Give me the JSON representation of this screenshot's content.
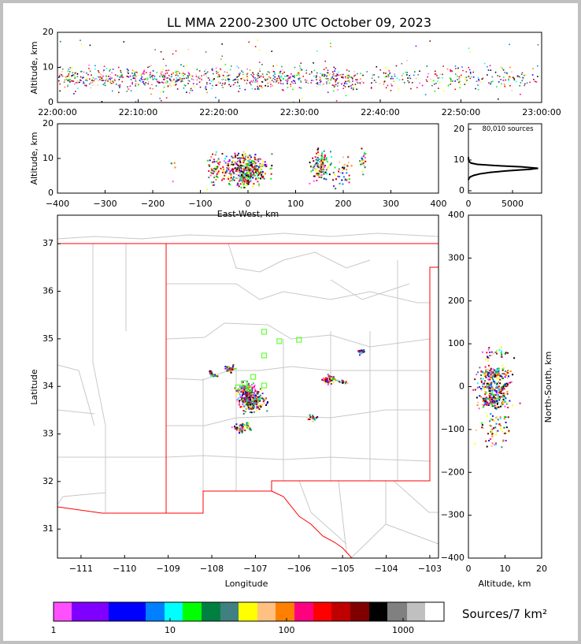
{
  "chart_data": [
    {
      "type": "scatter",
      "id": "time-altitude",
      "title": "LL MMA 2200-2300 UTC October 09, 2023",
      "xlabel": "",
      "ylabel": "Altitude, km",
      "xticks": [
        "22:00:00",
        "22:10:00",
        "22:20:00",
        "22:30:00",
        "22:40:00",
        "22:50:00",
        "23:00:00"
      ],
      "yticks": [
        "0",
        "10",
        "20"
      ],
      "xlim_minutes": [
        0,
        60
      ],
      "ylim": [
        0,
        20
      ],
      "typical_altitude_range_km": [
        3,
        11
      ]
    },
    {
      "type": "scatter",
      "id": "ew-altitude",
      "xlabel": "East-West, km",
      "ylabel": "Altitude, km",
      "xticks": [
        "−400",
        "−300",
        "−200",
        "−100",
        "0",
        "100",
        "200",
        "300",
        "400"
      ],
      "yticks": [
        "0",
        "10",
        "20"
      ],
      "xlim": [
        -400,
        400
      ],
      "ylim": [
        0,
        20
      ]
    },
    {
      "type": "line",
      "id": "altitude-histogram",
      "annotation": "80,010 sources",
      "xticks": [
        "0",
        "5000"
      ],
      "yticks": [
        "0",
        "10",
        "20"
      ],
      "xlim": [
        0,
        8300
      ],
      "ylim": [
        -0.8,
        21
      ],
      "points": [
        [
          0,
          3.5
        ],
        [
          50,
          4
        ],
        [
          200,
          4.5
        ],
        [
          600,
          5
        ],
        [
          1300,
          5.5
        ],
        [
          2500,
          6
        ],
        [
          4500,
          6.5
        ],
        [
          7000,
          7
        ],
        [
          7900,
          7.3
        ],
        [
          6000,
          7.8
        ],
        [
          3000,
          8.2
        ],
        [
          1000,
          8.6
        ],
        [
          300,
          9
        ],
        [
          80,
          9.5
        ],
        [
          20,
          10
        ],
        [
          0,
          11
        ]
      ]
    },
    {
      "type": "scatter",
      "id": "plan-view-map",
      "xlabel": "Longitude",
      "ylabel": "Latitude",
      "xticks": [
        "−111",
        "−110",
        "−109",
        "−108",
        "−107",
        "−106",
        "−105",
        "−104",
        "−103"
      ],
      "yticks": [
        "31",
        "32",
        "33",
        "34",
        "35",
        "36",
        "37"
      ],
      "xlim": [
        -111.54,
        -102.8
      ],
      "ylim": [
        30.39,
        37.6
      ],
      "stations": [
        [
          -106.8,
          35.15
        ],
        [
          -106.45,
          34.95
        ],
        [
          -106.0,
          34.98
        ],
        [
          -106.8,
          34.65
        ],
        [
          -107.05,
          34.2
        ],
        [
          -107.25,
          34.07
        ],
        [
          -107.4,
          33.98
        ],
        [
          -107.15,
          33.95
        ],
        [
          -106.8,
          34.02
        ]
      ],
      "source_clusters": [
        {
          "lon": -107.1,
          "lat": 33.7,
          "spread": 0.15,
          "n": 250
        },
        {
          "lon": -107.2,
          "lat": 33.95,
          "spread": 0.12,
          "n": 120
        },
        {
          "lon": -107.35,
          "lat": 33.15,
          "spread": 0.1,
          "n": 60
        },
        {
          "lon": -107.6,
          "lat": 34.38,
          "spread": 0.06,
          "n": 40
        },
        {
          "lon": -108.0,
          "lat": 34.28,
          "spread": 0.05,
          "n": 25
        },
        {
          "lon": -105.3,
          "lat": 34.15,
          "spread": 0.08,
          "n": 50
        },
        {
          "lon": -104.6,
          "lat": 34.74,
          "spread": 0.04,
          "n": 25
        },
        {
          "lon": -105.7,
          "lat": 33.35,
          "spread": 0.05,
          "n": 20
        },
        {
          "lon": -105.0,
          "lat": 34.1,
          "spread": 0.05,
          "n": 15
        }
      ]
    },
    {
      "type": "scatter",
      "id": "ns-altitude",
      "xlabel": "Altitude, km",
      "ylabel": "North-South, km",
      "xticks": [
        "0",
        "10",
        "20"
      ],
      "yticks": [
        "400",
        "300",
        "200",
        "100",
        "0",
        "−100",
        "−200",
        "−300",
        "−400"
      ],
      "xlim": [
        0,
        20
      ],
      "ylim": [
        -400,
        400
      ]
    },
    {
      "type": "colorbar",
      "id": "density-colorbar",
      "label": "Sources/7 km²",
      "ticks": [
        "1",
        "10",
        "100",
        "1000"
      ],
      "colors": [
        "#ff50ff",
        "#8000ff",
        "#0000ff",
        "#0080ff",
        "#00ffff",
        "#00ff00",
        "#008040",
        "#408080",
        "#ffff00",
        "#ffc080",
        "#ff8000",
        "#ff0080",
        "#ff0000",
        "#c00000",
        "#800000",
        "#000000",
        "#808080",
        "#c0c0c0",
        "#ffffff"
      ]
    }
  ]
}
